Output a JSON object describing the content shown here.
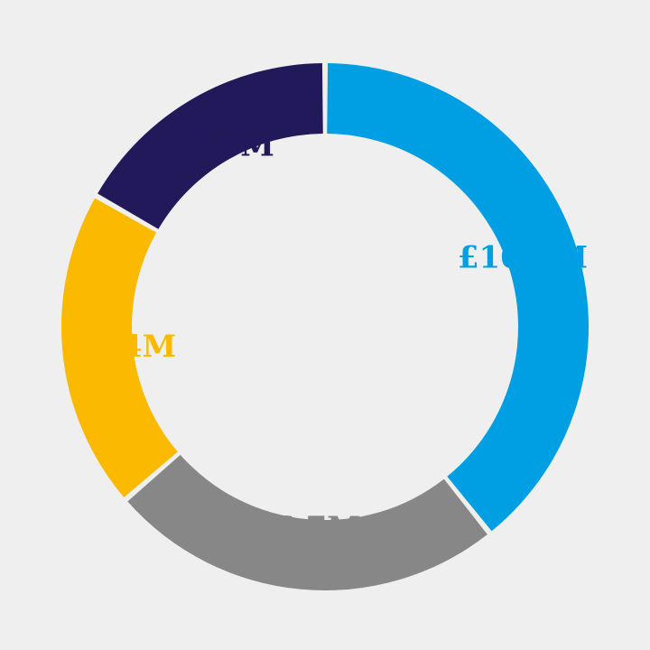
{
  "chart_data": {
    "type": "pie",
    "variant": "donut",
    "start": "top",
    "direction": "clockwise",
    "background": "#efefef",
    "slices": [
      {
        "label": "£10.8M",
        "value": 10.8,
        "color": "#009fe3"
      },
      {
        "label": "£6.7M",
        "value": 6.7,
        "color": "#878787"
      },
      {
        "label": "£5.4M",
        "value": 5.4,
        "color": "#fbb900"
      },
      {
        "label": "£4.6M",
        "value": 4.6,
        "color": "#21195a"
      }
    ]
  }
}
